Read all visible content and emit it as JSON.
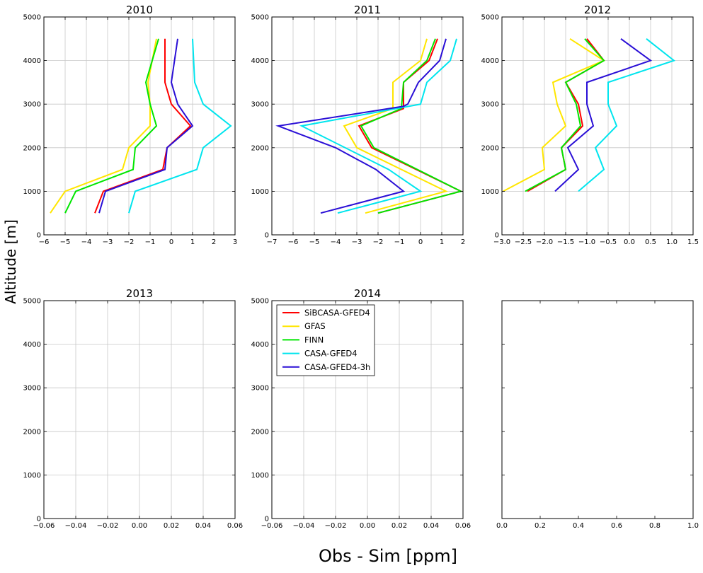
{
  "figure": {
    "ylabel": "Altitude [m]",
    "xlabel": "Obs - Sim [ppm]"
  },
  "colors": {
    "SiBCASA-GFED4": "#ff0000",
    "GFAS": "#ffe600",
    "FINN": "#00e600",
    "CASA-GFED4": "#00e5ee",
    "CASA-GFED4-3h": "#2a0fd6"
  },
  "legend": {
    "placement": "upper-left of 2014 panel",
    "entries": [
      "SiBCASA-GFED4",
      "GFAS",
      "FINN",
      "CASA-GFED4",
      "CASA-GFED4-3h"
    ]
  },
  "chart_data": [
    {
      "type": "line",
      "title": "2010",
      "xlim": [
        -6,
        3
      ],
      "ylim": [
        0,
        5000
      ],
      "xticks": [
        -6,
        -5,
        -4,
        -3,
        -2,
        -1,
        0,
        1,
        2,
        3
      ],
      "yticks": [
        0,
        1000,
        2000,
        3000,
        4000,
        5000
      ],
      "grid": true,
      "series": [
        {
          "name": "SiBCASA-GFED4",
          "x": [
            -3.6,
            -3.2,
            -0.4,
            -0.2,
            0.9,
            0.0,
            -0.3,
            -0.3
          ],
          "y": [
            500,
            1000,
            1500,
            2000,
            2500,
            3000,
            3500,
            4500
          ]
        },
        {
          "name": "GFAS",
          "x": [
            -5.7,
            -5.0,
            -2.3,
            -2.0,
            -1.0,
            -1.0,
            -1.1,
            -0.7
          ],
          "y": [
            500,
            1000,
            1500,
            2000,
            2500,
            3000,
            3500,
            4500
          ]
        },
        {
          "name": "FINN",
          "x": [
            -5.0,
            -4.5,
            -1.8,
            -1.7,
            -0.7,
            -1.0,
            -1.2,
            -0.6
          ],
          "y": [
            500,
            1000,
            1500,
            2000,
            2500,
            3000,
            3500,
            4500
          ]
        },
        {
          "name": "CASA-GFED4",
          "x": [
            -2.0,
            -1.7,
            1.2,
            1.5,
            2.8,
            1.5,
            1.1,
            1.0
          ],
          "y": [
            500,
            1000,
            1500,
            2000,
            2500,
            3000,
            3500,
            4500
          ]
        },
        {
          "name": "CASA-GFED4-3h",
          "x": [
            -3.4,
            -3.1,
            -0.3,
            -0.2,
            1.0,
            0.3,
            0.0,
            0.3
          ],
          "y": [
            500,
            1000,
            1500,
            2000,
            2500,
            3000,
            3500,
            4500
          ]
        }
      ]
    },
    {
      "type": "line",
      "title": "2011",
      "xlim": [
        -7,
        2
      ],
      "ylim": [
        0,
        5000
      ],
      "xticks": [
        -7,
        -6,
        -5,
        -4,
        -3,
        -2,
        -1,
        0,
        1,
        2
      ],
      "yticks": [
        0,
        1000,
        2000,
        3000,
        4000,
        5000
      ],
      "grid": true,
      "series": [
        {
          "name": "SiBCASA-GFED4",
          "x": [
            -2.0,
            1.9,
            -2.3,
            -2.9,
            -0.8,
            -0.8,
            0.4,
            0.8
          ],
          "y": [
            500,
            1000,
            2000,
            2500,
            2900,
            3500,
            4000,
            4500
          ]
        },
        {
          "name": "GFAS",
          "x": [
            -2.6,
            1.2,
            -3.0,
            -3.6,
            -1.3,
            -1.3,
            0.0,
            0.3
          ],
          "y": [
            500,
            1000,
            2000,
            2500,
            2900,
            3500,
            4000,
            4500
          ]
        },
        {
          "name": "FINN",
          "x": [
            -2.0,
            1.9,
            -2.2,
            -2.8,
            -0.9,
            -0.8,
            0.3,
            0.7
          ],
          "y": [
            500,
            1000,
            2000,
            2500,
            2900,
            3500,
            4000,
            4500
          ]
        },
        {
          "name": "CASA-GFED4",
          "x": [
            -3.9,
            0.0,
            -1.5,
            -5.6,
            0.0,
            0.3,
            1.4,
            1.7
          ],
          "y": [
            500,
            1000,
            1500,
            2500,
            3000,
            3500,
            4000,
            4500
          ]
        },
        {
          "name": "CASA-GFED4-3h",
          "x": [
            -4.7,
            -0.8,
            -2.1,
            -4.0,
            -6.7,
            -0.8,
            -0.6,
            -0.1,
            0.9,
            1.2
          ],
          "y": [
            500,
            1000,
            1500,
            2000,
            2500,
            2950,
            3000,
            3500,
            4000,
            4500
          ]
        }
      ]
    },
    {
      "type": "line",
      "title": "2012",
      "xlim": [
        -3,
        1.5
      ],
      "ylim": [
        0,
        5000
      ],
      "xticks": [
        -3.0,
        -2.5,
        -2.0,
        -1.5,
        -1.0,
        -0.5,
        0.0,
        0.5,
        1.0,
        1.5
      ],
      "xtick_labels": [
        "−3.0",
        "−2.5",
        "−2.0",
        "−1.5",
        "−1.0",
        "−0.5",
        "0.0",
        "0.5",
        "1.0",
        "1.5"
      ],
      "yticks": [
        0,
        1000,
        2000,
        3000,
        4000,
        5000
      ],
      "grid": true,
      "series": [
        {
          "name": "SiBCASA-GFED4",
          "x": [
            -2.4,
            -1.5,
            -1.6,
            -1.1,
            -1.2,
            -1.5,
            -0.6,
            -1.0
          ],
          "y": [
            1000,
            1500,
            2000,
            2500,
            3000,
            3500,
            4000,
            4500
          ]
        },
        {
          "name": "GFAS",
          "x": [
            -2.97,
            -2.0,
            -2.05,
            -1.5,
            -1.7,
            -1.8,
            -0.6,
            -1.4
          ],
          "y": [
            1000,
            1500,
            2000,
            2500,
            3000,
            3500,
            4000,
            4500
          ]
        },
        {
          "name": "FINN",
          "x": [
            -2.45,
            -1.5,
            -1.6,
            -1.15,
            -1.25,
            -1.5,
            -0.6,
            -1.05
          ],
          "y": [
            1000,
            1500,
            2000,
            2500,
            3000,
            3500,
            4000,
            4500
          ]
        },
        {
          "name": "CASA-GFED4",
          "x": [
            -1.2,
            -0.6,
            -0.8,
            -0.3,
            -0.5,
            -0.5,
            1.05,
            0.4
          ],
          "y": [
            1000,
            1500,
            2000,
            2500,
            3000,
            3500,
            4000,
            4500
          ]
        },
        {
          "name": "CASA-GFED4-3h",
          "x": [
            -1.75,
            -1.2,
            -1.45,
            -0.85,
            -1.0,
            -1.0,
            0.5,
            -0.2
          ],
          "y": [
            1000,
            1500,
            2000,
            2500,
            3000,
            3500,
            4000,
            4500
          ]
        }
      ]
    },
    {
      "type": "line",
      "title": "2013",
      "xlim": [
        -0.06,
        0.06
      ],
      "ylim": [
        0,
        5000
      ],
      "xticks": [
        -0.06,
        -0.04,
        -0.02,
        0.0,
        0.02,
        0.04,
        0.06
      ],
      "xtick_labels": [
        "−0.06",
        "−0.04",
        "−0.02",
        "0.00",
        "0.02",
        "0.04",
        "0.06"
      ],
      "yticks": [
        0,
        1000,
        2000,
        3000,
        4000,
        5000
      ],
      "grid": true,
      "series": []
    },
    {
      "type": "line",
      "title": "2014",
      "xlim": [
        -0.06,
        0.06
      ],
      "ylim": [
        0,
        5000
      ],
      "xticks": [
        -0.06,
        -0.04,
        -0.02,
        0.0,
        0.02,
        0.04,
        0.06
      ],
      "xtick_labels": [
        "−0.06",
        "−0.04",
        "−0.02",
        "0.00",
        "0.02",
        "0.04",
        "0.06"
      ],
      "yticks": [
        0,
        1000,
        2000,
        3000,
        4000,
        5000
      ],
      "grid": true,
      "legend": true,
      "series": []
    },
    {
      "type": "line",
      "title": "",
      "xlim": [
        0,
        1
      ],
      "ylim": [
        0,
        5000
      ],
      "xticks": [
        0.0,
        0.2,
        0.4,
        0.6,
        0.8,
        1.0
      ],
      "xtick_labels": [
        "0.0",
        "0.2",
        "0.4",
        "0.6",
        "0.8",
        "1.0"
      ],
      "yticks": [
        0,
        1000,
        2000,
        3000,
        4000,
        5000
      ],
      "ytick_labels_visible": false,
      "grid": false,
      "series": []
    }
  ]
}
